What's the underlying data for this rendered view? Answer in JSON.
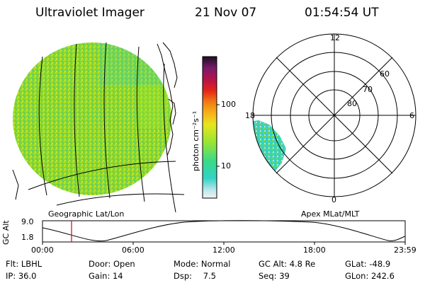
{
  "header": {
    "instrument": "Ultraviolet Imager",
    "date": "21 Nov 07",
    "time": "01:54:54 UT"
  },
  "colorbar": {
    "label": "photon cm⁻²s⁻¹",
    "ticks": [
      "100",
      "10"
    ]
  },
  "polar_plot": {
    "mlt_labels": [
      "12",
      "18",
      "6",
      "0"
    ],
    "lat_labels": [
      "60",
      "70",
      "80"
    ]
  },
  "panel_titles": {
    "left": "Geographic Lat/Lon",
    "right": "Apex MLat/MLT"
  },
  "altitude_plot": {
    "ylabel": "GC Alt",
    "y_ticks": [
      "9.0",
      "1.8"
    ],
    "x_ticks": [
      "00:00",
      "06:00",
      "12:00",
      "18:00",
      "23:59"
    ],
    "current_time_marker": "01:54:54"
  },
  "info": {
    "flt": {
      "label": "Flt:",
      "value": "LBHL"
    },
    "ip": {
      "label": "IP:",
      "value": "36.0"
    },
    "door": {
      "label": "Door:",
      "value": "Open"
    },
    "gain": {
      "label": "Gain:",
      "value": "14"
    },
    "mode": {
      "label": "Mode:",
      "value": "Normal"
    },
    "dsp": {
      "label": "Dsp:",
      "value": "7.5"
    },
    "gcalt": {
      "label": "GC Alt:",
      "value": "4.8 Re"
    },
    "seq": {
      "label": "Seq:",
      "value": "39"
    },
    "glat": {
      "label": "GLat:",
      "value": "-48.9"
    },
    "glon": {
      "label": "GLon:",
      "value": "242.6"
    }
  },
  "colors": {
    "green": "#7ed321",
    "lime": "#b4e61e",
    "teal": "#35d3c2"
  }
}
